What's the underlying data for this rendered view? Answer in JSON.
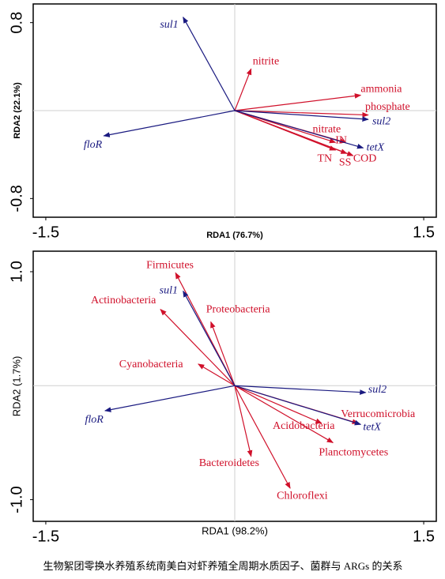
{
  "chart_data": [
    {
      "type": "biplot",
      "xlabel": "RDA1 (76.7%)",
      "ylabel": "RDA2 (22.1%)",
      "xlim": [
        -1.6,
        1.6
      ],
      "ylim": [
        -0.97,
        0.97
      ],
      "xticks": [
        -1.5,
        1.5
      ],
      "yticks": [
        0.8,
        -0.8
      ],
      "series": [
        {
          "color": "#d0102a",
          "italic": false,
          "labels": [
            "nitrite",
            "ammonia",
            "phosphate",
            "nitrate",
            "TN",
            "IN",
            "SS",
            "COD"
          ],
          "x": [
            0.13,
            1.0,
            1.06,
            0.8,
            0.8,
            0.88,
            0.89,
            0.94
          ],
          "y": [
            0.38,
            0.14,
            -0.04,
            -0.29,
            -0.36,
            -0.29,
            -0.39,
            -0.41
          ]
        },
        {
          "color": "#1a1a80",
          "italic": true,
          "labels": [
            "sul1",
            "sul2",
            "tetX",
            "floR"
          ],
          "x": [
            -0.41,
            1.06,
            1.02,
            -1.04
          ],
          "y": [
            0.85,
            -0.08,
            -0.34,
            -0.23
          ]
        }
      ]
    },
    {
      "type": "biplot",
      "xlabel": "RDA1 (98.2%)",
      "ylabel": "RDA2 (1.7%)",
      "xlim": [
        -1.6,
        1.6
      ],
      "ylim": [
        -1.19,
        1.18
      ],
      "xticks": [
        -1.5,
        1.5
      ],
      "yticks": [
        {
          "value": 1,
          "label": "1.0"
        },
        {
          "value": -1,
          "label": "-1.0"
        }
      ],
      "series": [
        {
          "color": "#d0102a",
          "italic": false,
          "labels": [
            "Firmicutes",
            "Actinobacteria",
            "Proteobacteria",
            "Cyanobacteria",
            "Verrucomicrobia",
            "Acidobacteria",
            "Planctomycetes",
            "Bacteroidetes",
            "Chloroflexi"
          ],
          "x": [
            -0.47,
            -0.59,
            -0.19,
            -0.29,
            0.98,
            0.69,
            0.78,
            0.13,
            0.44
          ],
          "y": [
            0.99,
            0.67,
            0.56,
            0.19,
            -0.33,
            -0.33,
            -0.5,
            -0.62,
            -0.9
          ]
        },
        {
          "color": "#1a1a80",
          "italic": true,
          "labels": [
            "sul1",
            "sul2",
            "tetX",
            "floR"
          ],
          "x": [
            -0.41,
            1.04,
            1.0,
            -1.03
          ],
          "y": [
            0.83,
            -0.06,
            -0.34,
            -0.22
          ]
        }
      ]
    }
  ],
  "caption": "生物絮团零换水养殖系统南美白对虾养殖全周期水质因子、菌群与 ARGs 的关系"
}
